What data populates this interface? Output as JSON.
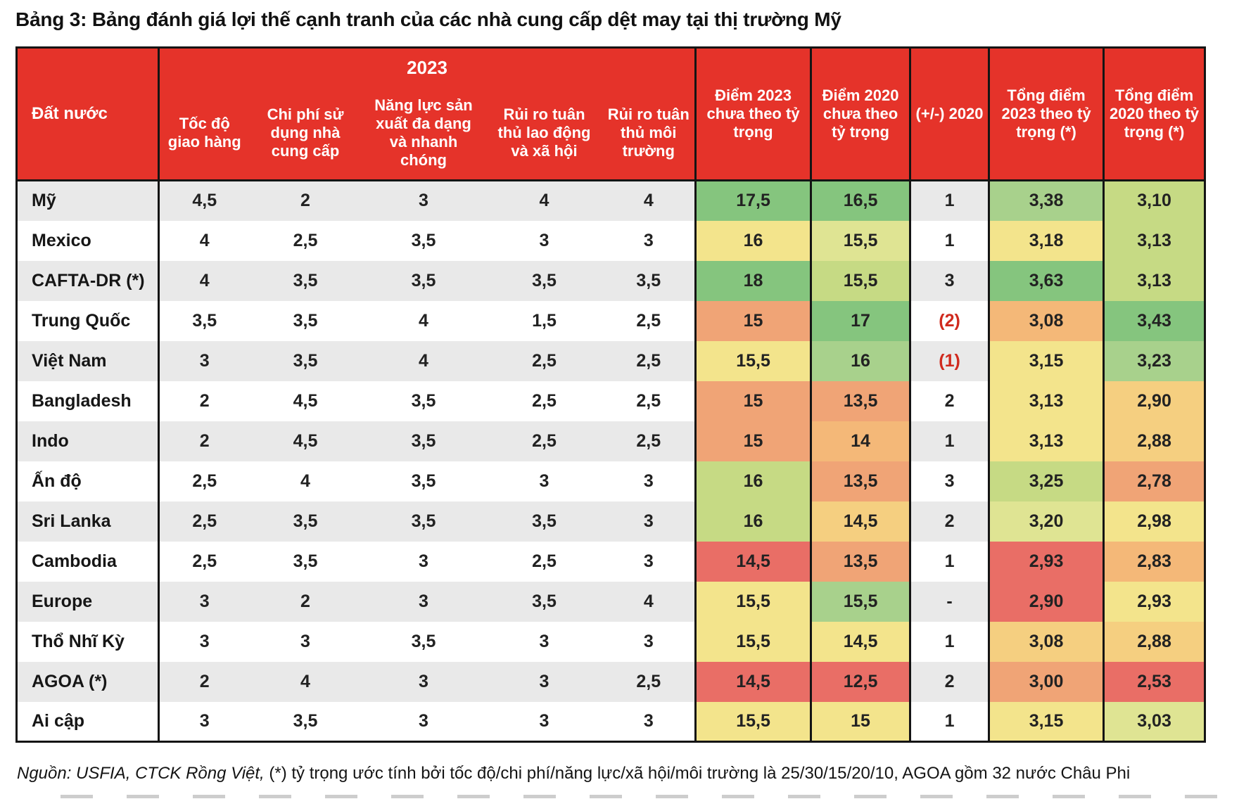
{
  "title": "Bảng 3: Bảng đánh giá lợi thế cạnh tranh của các nhà cung cấp dệt may tại thị trường Mỹ",
  "table": {
    "group_header": "2023",
    "columns": {
      "country": "Đất nước",
      "speed": "Tốc độ giao hàng",
      "cost": "Chi phí sử dụng nhà cung cấp",
      "capacity": "Năng lực sản xuất đa dạng và nhanh chóng",
      "labor_risk": "Rủi ro tuân thủ lao động và xã hội",
      "env_risk": "Rủi ro tuân thủ môi trường",
      "score2023": "Điểm 2023 chưa theo tỷ trọng",
      "score2020": "Điểm 2020 chưa theo tỷ trọng",
      "delta": "(+/-) 2020",
      "weighted2023": "Tổng điểm 2023 theo tỷ trọng (*)",
      "weighted2020": "Tổng điểm 2020 theo tỷ trọng (*)"
    },
    "palette": {
      "g": "#85c57e",
      "lg": "#a8d18c",
      "yg": "#c6da84",
      "pyg": "#dfe493",
      "y": "#f3e48c",
      "yo": "#f5cf80",
      "lo": "#f4b878",
      "o": "#f0a476",
      "r": "#e96e66"
    },
    "rows": [
      {
        "country": "Mỹ",
        "speed": "4,5",
        "cost": "2",
        "capacity": "3",
        "labor": "4",
        "env": "4",
        "score2023": "17,5",
        "score2020": "16,5",
        "delta": "1",
        "weighted2023": "3,38",
        "weighted2020": "3,10",
        "colors": {
          "score2023": "g",
          "score2020": "g",
          "weighted2023": "lg",
          "weighted2020": "yg"
        }
      },
      {
        "country": "Mexico",
        "speed": "4",
        "cost": "2,5",
        "capacity": "3,5",
        "labor": "3",
        "env": "3",
        "score2023": "16",
        "score2020": "15,5",
        "delta": "1",
        "weighted2023": "3,18",
        "weighted2020": "3,13",
        "colors": {
          "score2023": "y",
          "score2020": "pyg",
          "weighted2023": "y",
          "weighted2020": "yg"
        }
      },
      {
        "country": "CAFTA-DR (*)",
        "speed": "4",
        "cost": "3,5",
        "capacity": "3,5",
        "labor": "3,5",
        "env": "3,5",
        "score2023": "18",
        "score2020": "15,5",
        "delta": "3",
        "weighted2023": "3,63",
        "weighted2020": "3,13",
        "colors": {
          "score2023": "g",
          "score2020": "yg",
          "weighted2023": "g",
          "weighted2020": "yg"
        }
      },
      {
        "country": "Trung Quốc",
        "speed": "3,5",
        "cost": "3,5",
        "capacity": "4",
        "labor": "1,5",
        "env": "2,5",
        "score2023": "15",
        "score2020": "17",
        "delta": "(2)",
        "weighted2023": "3,08",
        "weighted2020": "3,43",
        "colors": {
          "score2023": "o",
          "score2020": "g",
          "weighted2023": "lo",
          "weighted2020": "g"
        }
      },
      {
        "country": "Việt Nam",
        "speed": "3",
        "cost": "3,5",
        "capacity": "4",
        "labor": "2,5",
        "env": "2,5",
        "score2023": "15,5",
        "score2020": "16",
        "delta": "(1)",
        "weighted2023": "3,15",
        "weighted2020": "3,23",
        "colors": {
          "score2023": "y",
          "score2020": "lg",
          "weighted2023": "y",
          "weighted2020": "lg"
        }
      },
      {
        "country": "Bangladesh",
        "speed": "2",
        "cost": "4,5",
        "capacity": "3,5",
        "labor": "2,5",
        "env": "2,5",
        "score2023": "15",
        "score2020": "13,5",
        "delta": "2",
        "weighted2023": "3,13",
        "weighted2020": "2,90",
        "colors": {
          "score2023": "o",
          "score2020": "o",
          "weighted2023": "y",
          "weighted2020": "yo"
        }
      },
      {
        "country": "Indo",
        "speed": "2",
        "cost": "4,5",
        "capacity": "3,5",
        "labor": "2,5",
        "env": "2,5",
        "score2023": "15",
        "score2020": "14",
        "delta": "1",
        "weighted2023": "3,13",
        "weighted2020": "2,88",
        "colors": {
          "score2023": "o",
          "score2020": "lo",
          "weighted2023": "y",
          "weighted2020": "yo"
        }
      },
      {
        "country": "Ấn độ",
        "speed": "2,5",
        "cost": "4",
        "capacity": "3,5",
        "labor": "3",
        "env": "3",
        "score2023": "16",
        "score2020": "13,5",
        "delta": "3",
        "weighted2023": "3,25",
        "weighted2020": "2,78",
        "colors": {
          "score2023": "yg",
          "score2020": "o",
          "weighted2023": "yg",
          "weighted2020": "o"
        }
      },
      {
        "country": "Sri Lanka",
        "speed": "2,5",
        "cost": "3,5",
        "capacity": "3,5",
        "labor": "3,5",
        "env": "3",
        "score2023": "16",
        "score2020": "14,5",
        "delta": "2",
        "weighted2023": "3,20",
        "weighted2020": "2,98",
        "colors": {
          "score2023": "yg",
          "score2020": "yo",
          "weighted2023": "pyg",
          "weighted2020": "y"
        }
      },
      {
        "country": "Cambodia",
        "speed": "2,5",
        "cost": "3,5",
        "capacity": "3",
        "labor": "2,5",
        "env": "3",
        "score2023": "14,5",
        "score2020": "13,5",
        "delta": "1",
        "weighted2023": "2,93",
        "weighted2020": "2,83",
        "colors": {
          "score2023": "r",
          "score2020": "o",
          "weighted2023": "r",
          "weighted2020": "lo"
        }
      },
      {
        "country": "Europe",
        "speed": "3",
        "cost": "2",
        "capacity": "3",
        "labor": "3,5",
        "env": "4",
        "score2023": "15,5",
        "score2020": "15,5",
        "delta": "-",
        "weighted2023": "2,90",
        "weighted2020": "2,93",
        "colors": {
          "score2023": "y",
          "score2020": "lg",
          "weighted2023": "r",
          "weighted2020": "y"
        }
      },
      {
        "country": "Thổ Nhĩ Kỳ",
        "speed": "3",
        "cost": "3",
        "capacity": "3,5",
        "labor": "3",
        "env": "3",
        "score2023": "15,5",
        "score2020": "14,5",
        "delta": "1",
        "weighted2023": "3,08",
        "weighted2020": "2,88",
        "colors": {
          "score2023": "y",
          "score2020": "y",
          "weighted2023": "yo",
          "weighted2020": "yo"
        }
      },
      {
        "country": "AGOA (*)",
        "speed": "2",
        "cost": "4",
        "capacity": "3",
        "labor": "3",
        "env": "2,5",
        "score2023": "14,5",
        "score2020": "12,5",
        "delta": "2",
        "weighted2023": "3,00",
        "weighted2020": "2,53",
        "colors": {
          "score2023": "r",
          "score2020": "r",
          "weighted2023": "o",
          "weighted2020": "r"
        }
      },
      {
        "country": "Ai cập",
        "speed": "3",
        "cost": "3,5",
        "capacity": "3",
        "labor": "3",
        "env": "3",
        "score2023": "15,5",
        "score2020": "15",
        "delta": "1",
        "weighted2023": "3,15",
        "weighted2020": "3,03",
        "colors": {
          "score2023": "y",
          "score2020": "y",
          "weighted2023": "y",
          "weighted2020": "pyg"
        }
      }
    ]
  },
  "footnote": {
    "source": "Nguồn: USFIA, CTCK Rồng Việt,",
    "note": " (*) tỷ trọng ước tính bởi tốc độ/chi phí/năng lực/xã hội/môi trường là 25/30/15/20/10, AGOA  gồm 32 nước Châu Phi"
  },
  "colors": {
    "header_bg": "#e5332a",
    "header_text": "#ffffff",
    "stripe": "#e9e9e9",
    "border": "#141414",
    "delta_negative_text": "#d02a1e"
  }
}
